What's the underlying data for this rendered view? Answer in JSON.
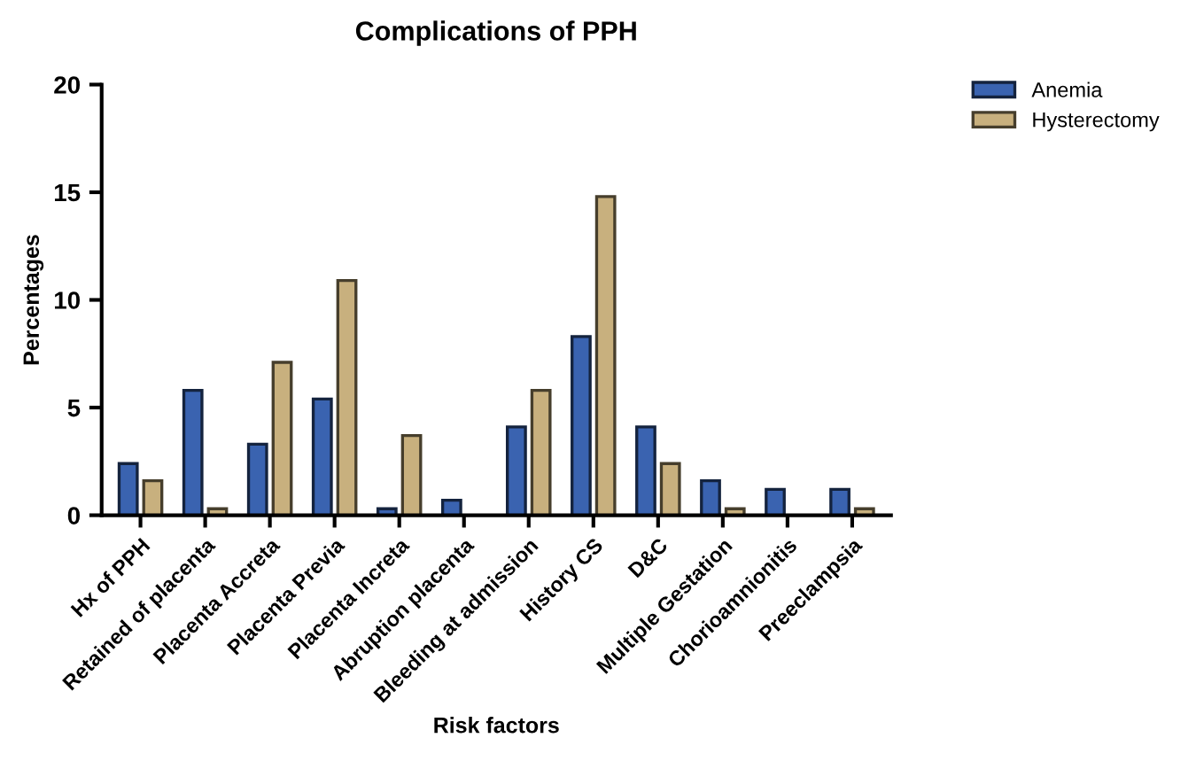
{
  "chart_data": {
    "type": "bar",
    "title": "Complications of PPH",
    "xlabel": "Risk factors",
    "ylabel": "Percentages",
    "categories": [
      "Hx of PPH",
      "Retained of placenta",
      "Placenta Accreta",
      "Placenta Previa",
      "Placenta Increta",
      "Abruption placenta",
      "Bleeding at admission",
      "History CS",
      "D&C",
      "Multiple Gestation",
      "Chorioamnionitis",
      "Preeclampsia"
    ],
    "series": [
      {
        "name": "Anemia",
        "color": "#3a63b0",
        "values": [
          2.4,
          5.8,
          3.3,
          5.4,
          0.3,
          0.7,
          4.1,
          8.3,
          4.1,
          1.6,
          1.2,
          1.2
        ]
      },
      {
        "name": "Hysterectomy",
        "color": "#c8b07e",
        "values": [
          1.6,
          0.3,
          7.1,
          10.9,
          3.7,
          null,
          5.8,
          14.8,
          2.4,
          0.3,
          null,
          0.3
        ]
      }
    ],
    "ylim": [
      0,
      20
    ],
    "yticks": [
      0,
      5,
      10,
      15,
      20
    ],
    "grid": false,
    "legend": "top right"
  }
}
